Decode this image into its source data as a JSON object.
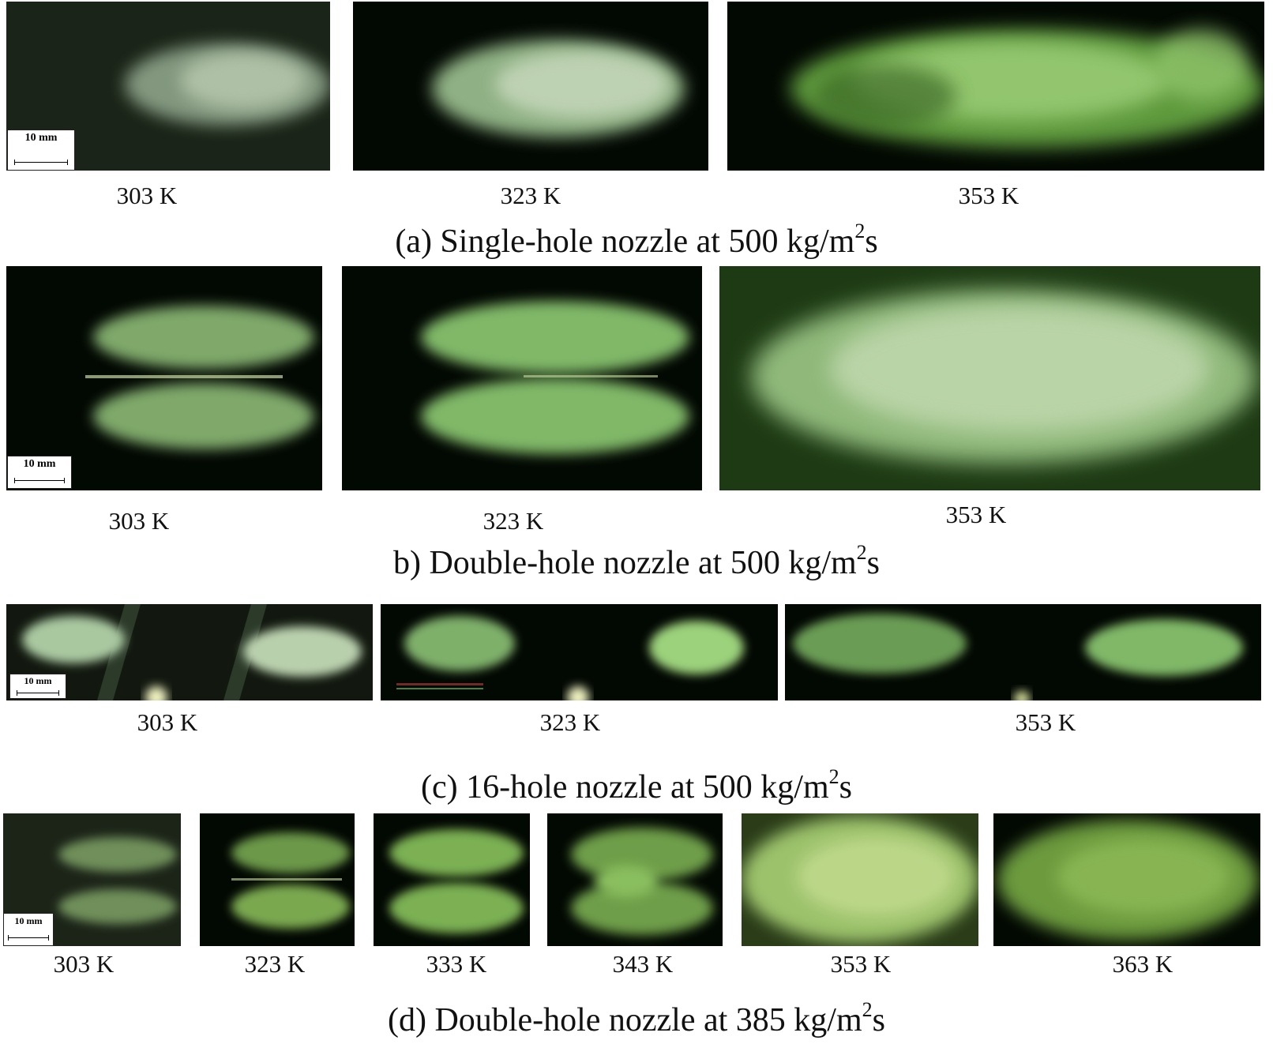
{
  "scale_bar": "10 mm",
  "sections": [
    {
      "caption": {
        "pre": "(a) Single-hole nozzle at 500 kg/m",
        "sup": "2",
        "post": "s"
      },
      "images": [
        {
          "label": "303 K",
          "spray": "single-weak"
        },
        {
          "label": "323 K",
          "spray": "single-medium"
        },
        {
          "label": "353 K",
          "spray": "single-flash"
        }
      ]
    },
    {
      "caption": {
        "pre": "b) Double-hole nozzle at 500 kg/m",
        "sup": "2",
        "post": "s"
      },
      "images": [
        {
          "label": "303 K",
          "spray": "double-separate"
        },
        {
          "label": "323 K",
          "spray": "double-close"
        },
        {
          "label": "353 K",
          "spray": "double-merged"
        }
      ]
    },
    {
      "caption": {
        "pre": "(c) 16-hole nozzle at 500 kg/m",
        "sup": "2",
        "post": "s"
      },
      "images": [
        {
          "label": "303 K",
          "spray": "multi-plume"
        },
        {
          "label": "323 K",
          "spray": "multi-plume"
        },
        {
          "label": "353 K",
          "spray": "multi-plume"
        }
      ]
    },
    {
      "caption": {
        "pre": "(d) Double-hole nozzle at 385 kg/m",
        "sup": "2",
        "post": "s"
      },
      "images": [
        {
          "label": "303 K",
          "spray": "double-faint"
        },
        {
          "label": "323 K",
          "spray": "double-separate"
        },
        {
          "label": "333 K",
          "spray": "double-separate"
        },
        {
          "label": "343 K",
          "spray": "double-crossing"
        },
        {
          "label": "353 K",
          "spray": "double-merged"
        },
        {
          "label": "363 K",
          "spray": "double-merged"
        }
      ]
    }
  ],
  "colors": {
    "background": "#020802",
    "spray_bright": "#c8e6b4",
    "spray_green": "#7fbf5a",
    "caption_text": "#111111"
  }
}
